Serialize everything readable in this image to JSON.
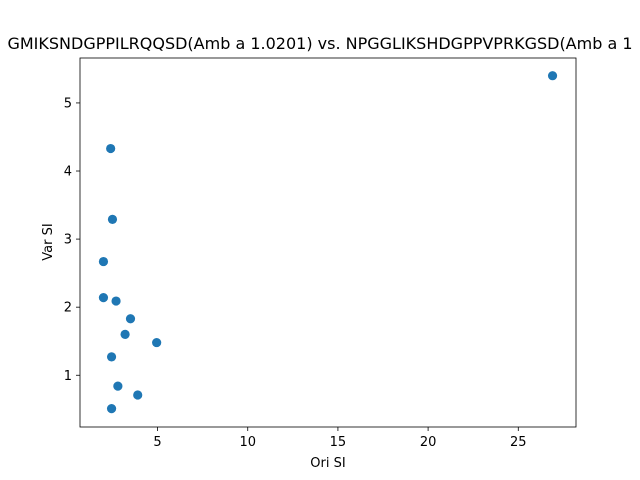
{
  "chart_data": {
    "type": "scatter",
    "title": "GMIKSNDGPPILRQQSD(Amb a 1.0201) vs. NPGGLIKSHDGPPVPRKGSD(Amb a 1",
    "xlabel": "Ori SI",
    "ylabel": "Var SI",
    "xlim": [
      0.7,
      28.2
    ],
    "ylim": [
      0.24,
      5.66
    ],
    "xticks": [
      5,
      10,
      15,
      20,
      25
    ],
    "yticks": [
      1,
      2,
      3,
      4,
      5
    ],
    "grid": false,
    "legend": "none",
    "marker_color": "#1f77b4",
    "points": [
      {
        "x": 26.9,
        "y": 5.4
      },
      {
        "x": 2.4,
        "y": 4.33
      },
      {
        "x": 2.5,
        "y": 3.29
      },
      {
        "x": 2.0,
        "y": 2.67
      },
      {
        "x": 2.0,
        "y": 2.14
      },
      {
        "x": 2.7,
        "y": 2.09
      },
      {
        "x": 3.5,
        "y": 1.83
      },
      {
        "x": 3.2,
        "y": 1.6
      },
      {
        "x": 4.95,
        "y": 1.48
      },
      {
        "x": 2.45,
        "y": 1.27
      },
      {
        "x": 2.8,
        "y": 0.84
      },
      {
        "x": 3.9,
        "y": 0.71
      },
      {
        "x": 2.45,
        "y": 0.51
      }
    ]
  }
}
